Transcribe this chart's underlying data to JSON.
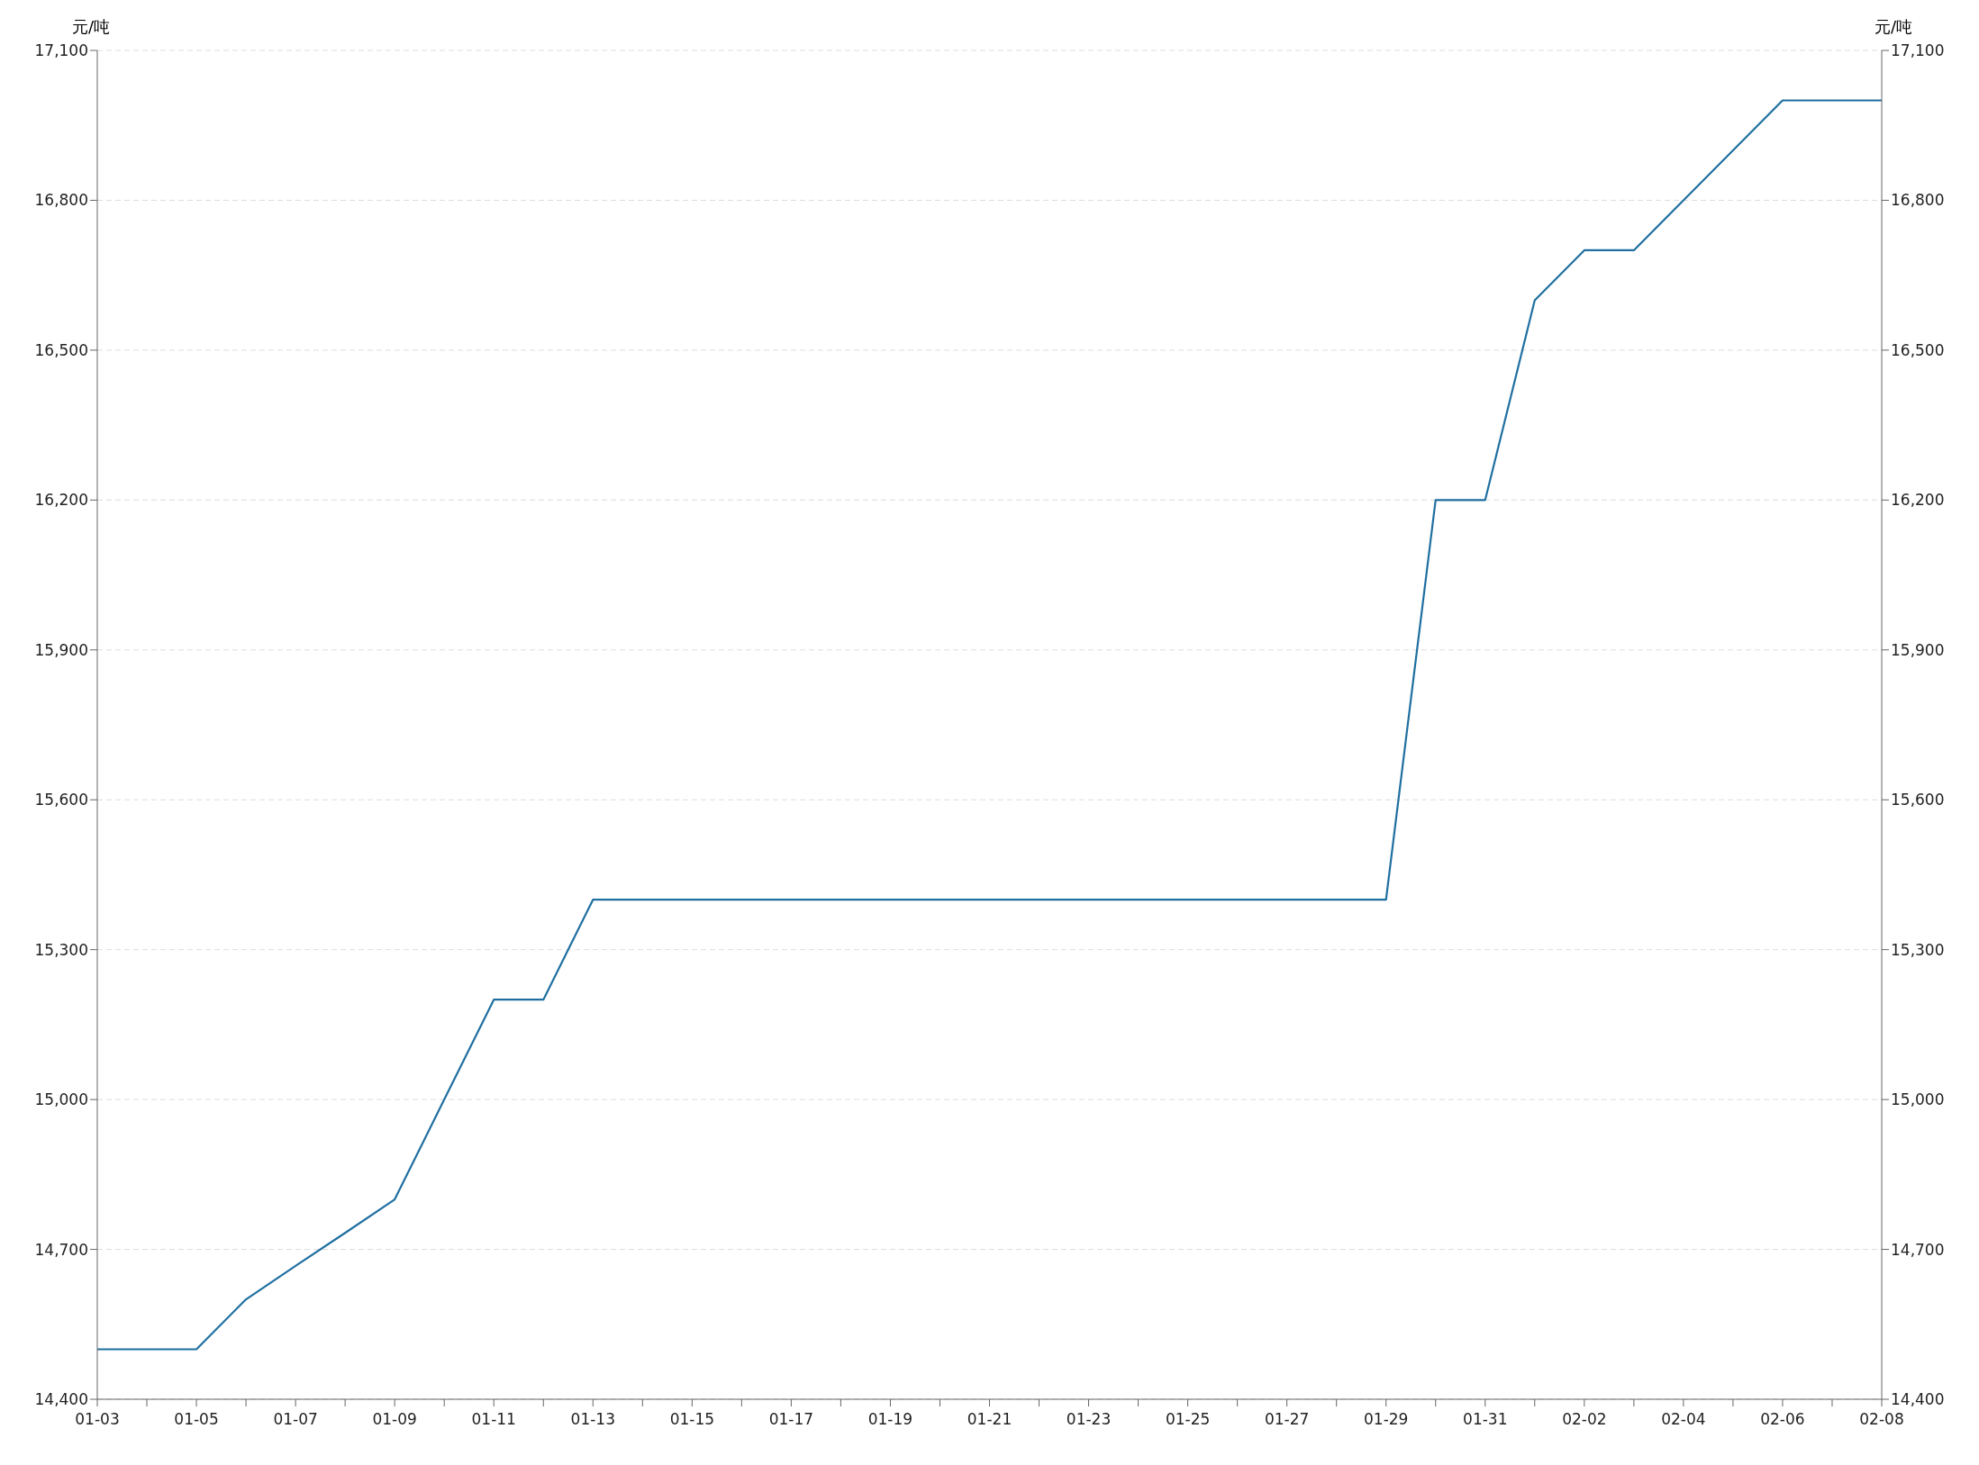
{
  "chart_data": {
    "type": "line",
    "ylabel": "元/吨",
    "y2label": "元/吨",
    "categories": [
      "01-03",
      null,
      "01-05",
      null,
      "01-07",
      null,
      "01-09",
      null,
      "01-11",
      null,
      "01-13",
      null,
      "01-15",
      null,
      "01-17",
      null,
      "01-19",
      null,
      "01-21",
      null,
      "01-23",
      null,
      "01-25",
      null,
      "01-27",
      null,
      "01-29",
      null,
      "01-31",
      null,
      "02-02",
      null,
      "02-04",
      null,
      "02-06",
      null,
      "02-08"
    ],
    "series": [
      {
        "color": "#1f6fa0",
        "values": [
          14500,
          14500,
          14500,
          14600,
          14667,
          14733,
          14800,
          15000,
          15200,
          15200,
          15400,
          15400,
          15400,
          15400,
          15400,
          15400,
          15400,
          15400,
          15400,
          15400,
          15400,
          15400,
          15400,
          15400,
          15400,
          15400,
          15400,
          16200,
          16200,
          16600,
          16700,
          16700,
          16800,
          16900,
          17000,
          17000,
          17000
        ]
      }
    ],
    "ylim": [
      14400,
      17100
    ],
    "yticks": [
      {
        "value": 14400,
        "label": "14,400"
      },
      {
        "value": 14700,
        "label": "14,700"
      },
      {
        "value": 15000,
        "label": "15,000"
      },
      {
        "value": 15300,
        "label": "15,300"
      },
      {
        "value": 15600,
        "label": "15,600"
      },
      {
        "value": 15900,
        "label": "15,900"
      },
      {
        "value": 16200,
        "label": "16,200"
      },
      {
        "value": 16500,
        "label": "16,500"
      },
      {
        "value": 16800,
        "label": "16,800"
      },
      {
        "value": 17100,
        "label": "17,100"
      }
    ],
    "y2lim": [
      14400,
      17100
    ],
    "y2ticks": [
      {
        "value": 14400,
        "label": "14,400"
      },
      {
        "value": 14700,
        "label": "14,700"
      },
      {
        "value": 15000,
        "label": "15,000"
      },
      {
        "value": 15300,
        "label": "15,300"
      },
      {
        "value": 15600,
        "label": "15,600"
      },
      {
        "value": 15900,
        "label": "15,900"
      },
      {
        "value": 16200,
        "label": "16,200"
      },
      {
        "value": 16500,
        "label": "16,500"
      },
      {
        "value": 16800,
        "label": "16,800"
      },
      {
        "value": 17100,
        "label": "17,100"
      }
    ],
    "grid": "y",
    "legend": false,
    "marker": "none",
    "line_style": "solid"
  }
}
